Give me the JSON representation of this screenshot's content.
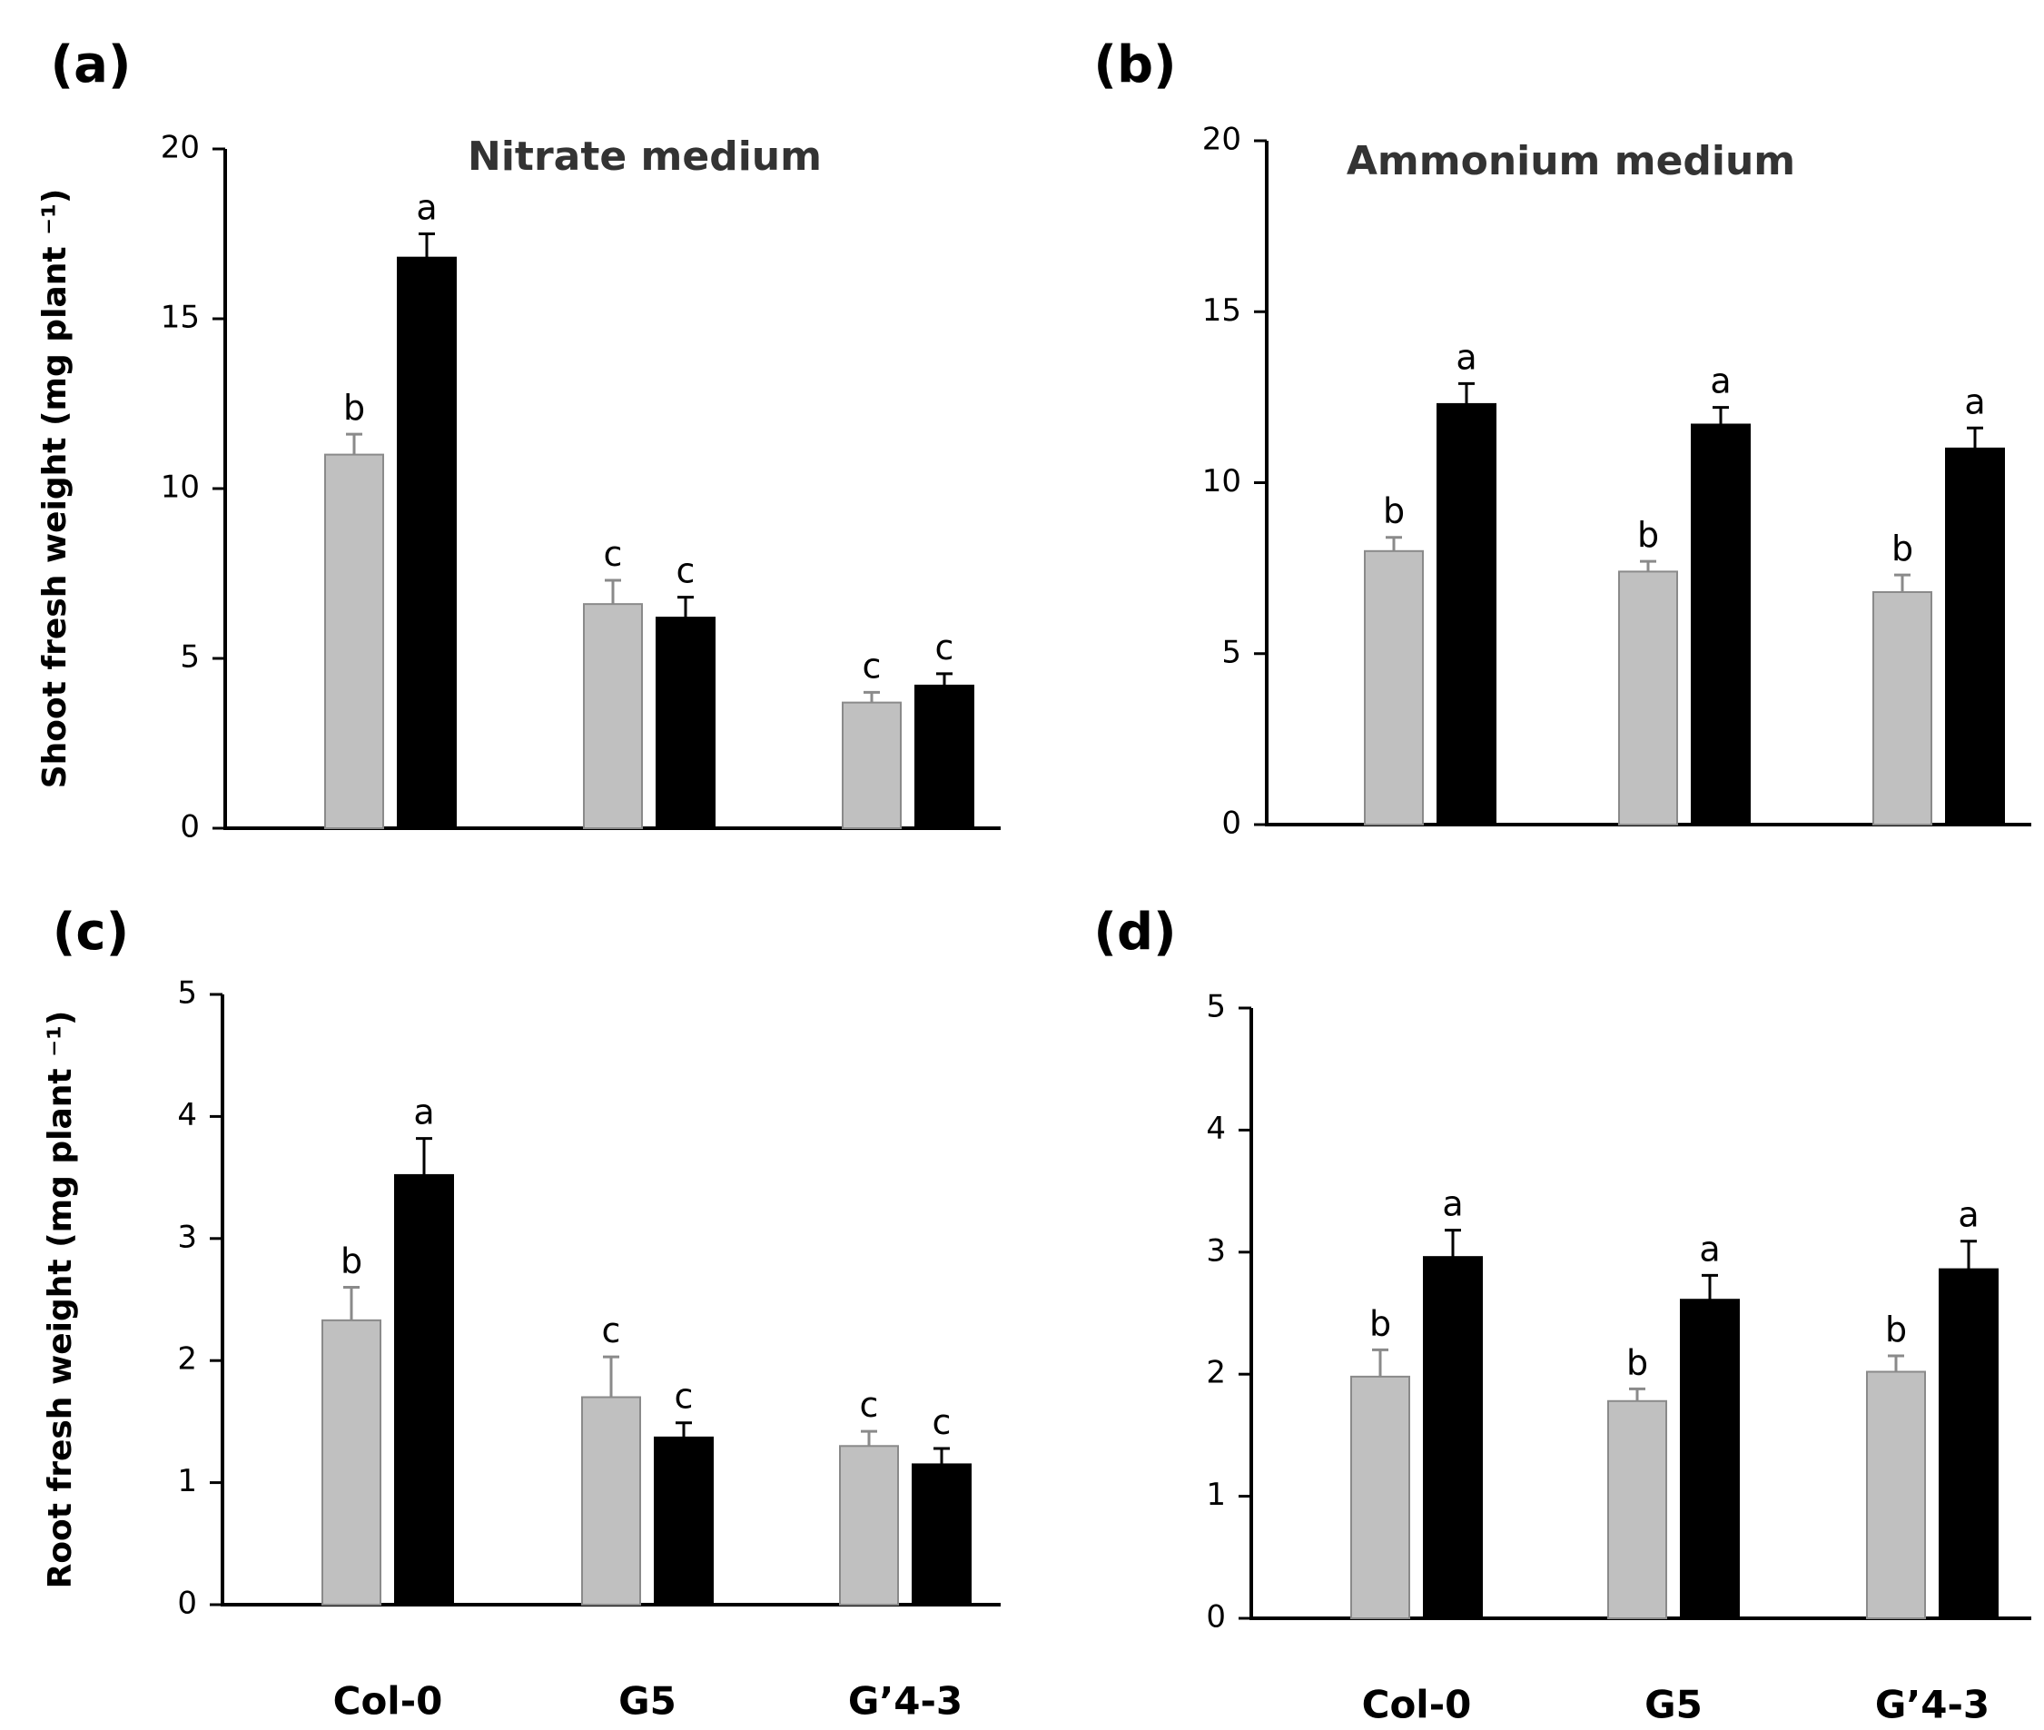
{
  "chart_data": [
    {
      "panel": "(a)",
      "type": "bar",
      "title": "Nitrate medium",
      "ylabel": "Shoot fresh weight (mg plant ⁻¹)",
      "xlabel": "",
      "ylim": [
        0,
        20
      ],
      "yticks": [
        0,
        5,
        10,
        15,
        20
      ],
      "categories": [
        "",
        "",
        ""
      ],
      "series": [
        {
          "color": "#c0c0c0",
          "values": [
            11.0,
            6.6,
            3.7
          ],
          "errors": [
            0.6,
            0.7,
            0.3
          ],
          "letters": [
            "b",
            "c",
            "c"
          ]
        },
        {
          "color": "#000000",
          "values": [
            16.8,
            6.2,
            4.2
          ],
          "errors": [
            0.7,
            0.6,
            0.35
          ],
          "letters": [
            "a",
            "c",
            "c"
          ]
        }
      ]
    },
    {
      "panel": "(b)",
      "type": "bar",
      "title": "Ammonium medium",
      "ylabel": "",
      "xlabel": "",
      "ylim": [
        0,
        20
      ],
      "yticks": [
        0,
        5,
        10,
        15,
        20
      ],
      "categories": [
        "",
        "",
        ""
      ],
      "series": [
        {
          "color": "#c0c0c0",
          "values": [
            8.0,
            7.4,
            6.8
          ],
          "errors": [
            0.4,
            0.3,
            0.5
          ],
          "letters": [
            "b",
            "b",
            "b"
          ]
        },
        {
          "color": "#000000",
          "values": [
            12.3,
            11.7,
            11.0
          ],
          "errors": [
            0.6,
            0.5,
            0.6
          ],
          "letters": [
            "a",
            "a",
            "a"
          ]
        }
      ]
    },
    {
      "panel": "(c)",
      "type": "bar",
      "title": "",
      "ylabel": "Root fresh weight (mg plant ⁻¹)",
      "xlabel": "",
      "ylim": [
        0,
        5
      ],
      "yticks": [
        0,
        1,
        2,
        3,
        4,
        5
      ],
      "categories": [
        "Col-0",
        "G5",
        "G’4-3"
      ],
      "series": [
        {
          "color": "#c0c0c0",
          "values": [
            2.33,
            1.7,
            1.3
          ],
          "errors": [
            0.27,
            0.33,
            0.12
          ],
          "letters": [
            "b",
            "c",
            "c"
          ]
        },
        {
          "color": "#000000",
          "values": [
            3.52,
            1.37,
            1.15
          ],
          "errors": [
            0.3,
            0.12,
            0.13
          ],
          "letters": [
            "a",
            "c",
            "c"
          ]
        }
      ]
    },
    {
      "panel": "(d)",
      "type": "bar",
      "title": "",
      "ylabel": "",
      "xlabel": "",
      "ylim": [
        0,
        5
      ],
      "yticks": [
        0,
        1,
        2,
        3,
        4,
        5
      ],
      "categories": [
        "Col-0",
        "G5",
        "G’4-3"
      ],
      "series": [
        {
          "color": "#c0c0c0",
          "values": [
            1.98,
            1.78,
            2.02
          ],
          "errors": [
            0.22,
            0.1,
            0.13
          ],
          "letters": [
            "b",
            "b",
            "b"
          ]
        },
        {
          "color": "#000000",
          "values": [
            2.96,
            2.61,
            2.86
          ],
          "errors": [
            0.22,
            0.2,
            0.23
          ],
          "letters": [
            "a",
            "a",
            "a"
          ]
        }
      ]
    }
  ]
}
